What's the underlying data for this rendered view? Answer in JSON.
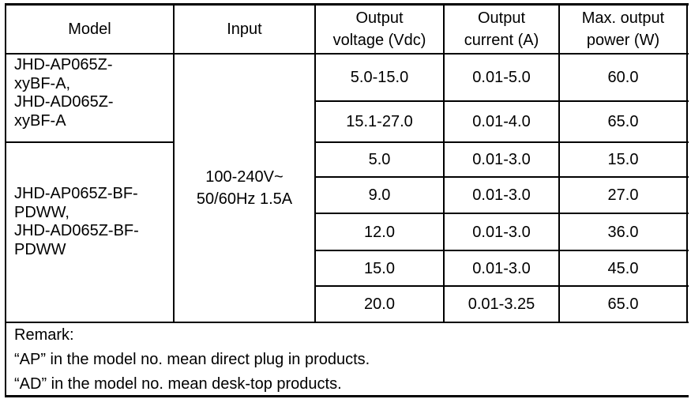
{
  "headers": {
    "model": "Model",
    "input": "Input",
    "voltage": [
      "Output",
      "voltage (Vdc)"
    ],
    "current": [
      "Output",
      "current (A)"
    ],
    "power": [
      "Max. output",
      "power (W)"
    ]
  },
  "groups": [
    {
      "model_lines": [
        "JHD-AP065Z-",
        "xyBF-A,",
        "JHD-AD065Z-",
        "xyBF-A"
      ]
    },
    {
      "model_lines": [
        "JHD-AP065Z-BF-",
        "PDWW,",
        "JHD-AD065Z-BF-",
        "PDWW"
      ]
    }
  ],
  "input_lines": [
    "100-240V~",
    "50/60Hz 1.5A"
  ],
  "rows": [
    {
      "voltage": "5.0-15.0",
      "current": "0.01-5.0",
      "power": "60.0"
    },
    {
      "voltage": "15.1-27.0",
      "current": "0.01-4.0",
      "power": "65.0"
    },
    {
      "voltage": "5.0",
      "current": "0.01-3.0",
      "power": "15.0"
    },
    {
      "voltage": "9.0",
      "current": "0.01-3.0",
      "power": "27.0"
    },
    {
      "voltage": "12.0",
      "current": "0.01-3.0",
      "power": "36.0"
    },
    {
      "voltage": "15.0",
      "current": "0.01-3.0",
      "power": "45.0"
    },
    {
      "voltage": "20.0",
      "current": "0.01-3.25",
      "power": "65.0"
    }
  ],
  "remark": {
    "title": "Remark:",
    "lines": [
      "“AP” in the model no. mean direct plug in products.",
      "“AD” in the model no. mean desk-top products."
    ]
  }
}
